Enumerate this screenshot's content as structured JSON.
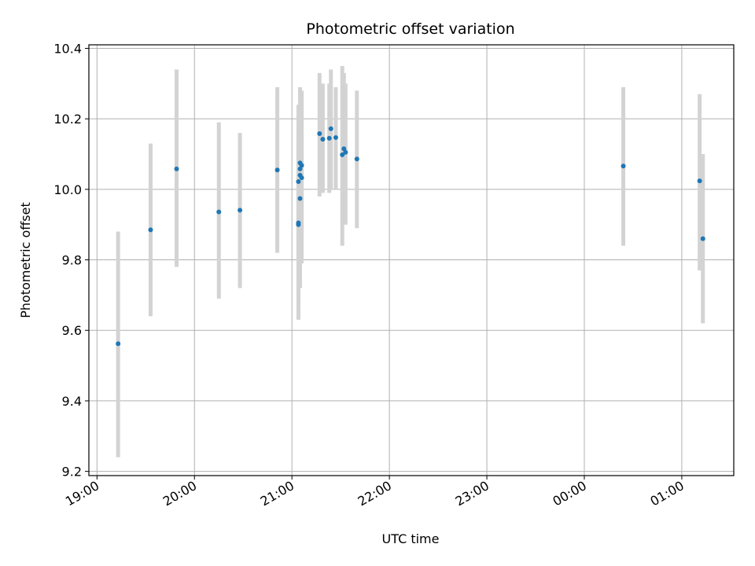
{
  "chart_data": {
    "type": "scatter",
    "title": "Photometric offset variation",
    "xlabel": "UTC time",
    "ylabel": "Photometric offset",
    "x_ticks": [
      "19:00",
      "20:00",
      "21:00",
      "22:00",
      "23:00",
      "00:00",
      "01:00"
    ],
    "y_ticks": [
      "9.2",
      "9.4",
      "9.6",
      "9.8",
      "10.0",
      "10.2",
      "10.4"
    ],
    "xlim": [
      "18:55",
      "01:32"
    ],
    "ylim": [
      9.188,
      10.41
    ],
    "grid": true,
    "colors": {
      "point": "#1f77b4",
      "errorbar": "#d3d3d3",
      "grid": "#b0b0b0"
    },
    "points": [
      {
        "x": "19:13",
        "y": 9.562,
        "ylo": 9.24,
        "yhi": 9.88
      },
      {
        "x": "19:33",
        "y": 9.885,
        "ylo": 9.64,
        "yhi": 10.13
      },
      {
        "x": "19:49",
        "y": 10.058,
        "ylo": 9.78,
        "yhi": 10.34
      },
      {
        "x": "20:15",
        "y": 9.936,
        "ylo": 9.69,
        "yhi": 10.19
      },
      {
        "x": "20:28",
        "y": 9.941,
        "ylo": 9.72,
        "yhi": 10.16
      },
      {
        "x": "20:51",
        "y": 10.055,
        "ylo": 9.82,
        "yhi": 10.29
      },
      {
        "x": "21:04",
        "y": 9.905,
        "ylo": 9.63,
        "yhi": 10.18
      },
      {
        "x": "21:04",
        "y": 9.9,
        "ylo": 9.66,
        "yhi": 10.14
      },
      {
        "x": "21:04",
        "y": 10.022,
        "ylo": 9.8,
        "yhi": 10.24
      },
      {
        "x": "21:05",
        "y": 9.974,
        "ylo": 9.72,
        "yhi": 10.22
      },
      {
        "x": "21:05",
        "y": 10.058,
        "ylo": 9.83,
        "yhi": 10.28
      },
      {
        "x": "21:05",
        "y": 10.075,
        "ylo": 9.85,
        "yhi": 10.29
      },
      {
        "x": "21:05",
        "y": 10.04,
        "ylo": 9.81,
        "yhi": 10.26
      },
      {
        "x": "21:06",
        "y": 10.033,
        "ylo": 9.79,
        "yhi": 10.28
      },
      {
        "x": "21:06",
        "y": 10.068,
        "ylo": 9.87,
        "yhi": 10.27
      },
      {
        "x": "21:17",
        "y": 10.158,
        "ylo": 9.98,
        "yhi": 10.33
      },
      {
        "x": "21:19",
        "y": 10.142,
        "ylo": 9.99,
        "yhi": 10.3
      },
      {
        "x": "21:23",
        "y": 10.145,
        "ylo": 9.99,
        "yhi": 10.3
      },
      {
        "x": "21:24",
        "y": 10.172,
        "ylo": 10.0,
        "yhi": 10.34
      },
      {
        "x": "21:27",
        "y": 10.147,
        "ylo": 10.0,
        "yhi": 10.29
      },
      {
        "x": "21:31",
        "y": 10.098,
        "ylo": 9.84,
        "yhi": 10.35
      },
      {
        "x": "21:32",
        "y": 10.115,
        "ylo": 9.9,
        "yhi": 10.33
      },
      {
        "x": "21:33",
        "y": 10.105,
        "ylo": 9.9,
        "yhi": 10.3
      },
      {
        "x": "21:40",
        "y": 10.086,
        "ylo": 9.89,
        "yhi": 10.28
      },
      {
        "x": "00:24",
        "y": 10.066,
        "ylo": 9.84,
        "yhi": 10.29
      },
      {
        "x": "01:11",
        "y": 10.024,
        "ylo": 9.77,
        "yhi": 10.27
      },
      {
        "x": "01:13",
        "y": 9.86,
        "ylo": 9.62,
        "yhi": 10.1
      }
    ]
  }
}
